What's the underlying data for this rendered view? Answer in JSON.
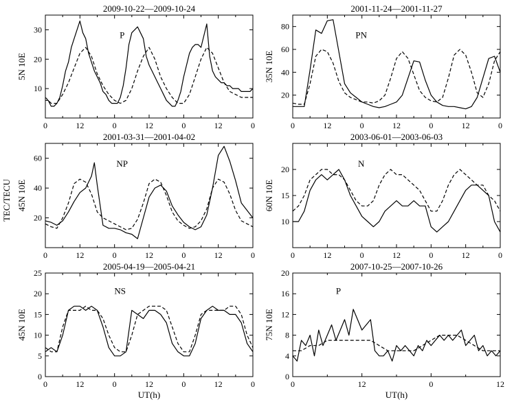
{
  "figure": {
    "ylabel": "TEC/TECU",
    "xlabel": "UT(h)"
  },
  "chart_data": [
    {
      "type": "line",
      "title": "2009-10-22—2009-10-24",
      "annotation": "P",
      "ylabel": "5N 10E",
      "xlabel": "",
      "x_ticks": [
        "0",
        "12",
        "0",
        "12",
        "0",
        "12",
        "0"
      ],
      "y_ticks": [
        10,
        20,
        30
      ],
      "ylim": [
        0,
        35
      ],
      "xlim": [
        0,
        72
      ],
      "series": [
        {
          "name": "",
          "style": "solid",
          "x": [
            0,
            1,
            2,
            3,
            4,
            5,
            6,
            7,
            8,
            9,
            10,
            11,
            12,
            13,
            14,
            15,
            16,
            17,
            18,
            19,
            20,
            21,
            22,
            23,
            24,
            25,
            26,
            27,
            28,
            29,
            30,
            31,
            32,
            33,
            34,
            35,
            36,
            37,
            38,
            39,
            40,
            41,
            42,
            43,
            44,
            45,
            46,
            47,
            48,
            49,
            50,
            51,
            52,
            53,
            54,
            55,
            56,
            57,
            58,
            59,
            60,
            61,
            62,
            63,
            64,
            65,
            66,
            67,
            68,
            69,
            70,
            71,
            72
          ],
          "values": [
            6,
            6,
            4,
            4,
            5,
            7,
            11,
            16,
            19,
            24,
            27,
            30,
            33,
            29,
            27,
            22,
            19,
            16,
            14,
            12,
            9,
            8,
            6,
            5,
            5,
            5,
            7,
            11,
            17,
            25,
            29,
            30,
            31,
            29,
            27,
            21,
            18,
            16,
            14,
            12,
            10,
            8,
            6,
            5,
            4,
            4,
            6,
            9,
            14,
            18,
            22,
            24,
            25,
            25,
            24,
            28,
            32,
            21,
            16,
            14,
            13,
            12,
            12,
            11,
            11,
            10,
            10,
            10,
            9,
            9,
            9,
            9,
            10
          ]
        },
        {
          "name": "",
          "style": "dashed",
          "x": [
            0,
            2,
            4,
            6,
            8,
            10,
            12,
            14,
            16,
            18,
            20,
            22,
            24,
            26,
            28,
            30,
            32,
            34,
            36,
            38,
            40,
            42,
            44,
            46,
            48,
            50,
            52,
            54,
            56,
            58,
            60,
            62,
            64,
            66,
            68,
            70,
            72
          ],
          "values": [
            7,
            5,
            5,
            8,
            12,
            17,
            22,
            24,
            21,
            15,
            11,
            8,
            6,
            5,
            6,
            10,
            16,
            21,
            24,
            20,
            14,
            10,
            7,
            5,
            5,
            8,
            14,
            20,
            24,
            22,
            17,
            12,
            9,
            8,
            7,
            7,
            7
          ]
        }
      ]
    },
    {
      "type": "line",
      "title": "2001-11-24—2001-11-27",
      "annotation": "PN",
      "ylabel": "35N 10E",
      "xlabel": "",
      "x_ticks": [
        "0",
        "12",
        "0",
        "12",
        "0",
        "12",
        "0"
      ],
      "y_ticks": [
        20,
        40,
        60,
        80
      ],
      "ylim": [
        0,
        90
      ],
      "xlim": [
        0,
        72
      ],
      "series": [
        {
          "name": "",
          "style": "solid",
          "x": [
            0,
            2,
            4,
            6,
            8,
            10,
            12,
            14,
            16,
            18,
            20,
            22,
            24,
            26,
            28,
            30,
            32,
            34,
            36,
            38,
            40,
            42,
            44,
            46,
            48,
            50,
            52,
            54,
            56,
            58,
            60,
            62,
            64,
            66,
            68,
            70,
            72
          ],
          "values": [
            10,
            10,
            10,
            42,
            77,
            74,
            85,
            86,
            58,
            30,
            22,
            18,
            14,
            12,
            10,
            9,
            10,
            12,
            14,
            20,
            35,
            50,
            49,
            33,
            20,
            14,
            11,
            10,
            10,
            9,
            8,
            10,
            18,
            35,
            52,
            54,
            40
          ]
        },
        {
          "name": "",
          "style": "dashed",
          "x": [
            0,
            2,
            4,
            6,
            8,
            10,
            12,
            14,
            16,
            18,
            20,
            22,
            24,
            26,
            28,
            30,
            32,
            34,
            36,
            38,
            40,
            42,
            44,
            46,
            48,
            50,
            52,
            54,
            56,
            58,
            60,
            62,
            64,
            66,
            68,
            70,
            72
          ],
          "values": [
            13,
            12,
            12,
            30,
            54,
            60,
            58,
            48,
            32,
            22,
            18,
            16,
            14,
            14,
            13,
            15,
            20,
            35,
            52,
            58,
            52,
            38,
            24,
            18,
            15,
            14,
            18,
            35,
            55,
            60,
            55,
            40,
            22,
            18,
            30,
            50,
            58
          ]
        }
      ]
    },
    {
      "type": "line",
      "title": "2001-03-31—2001-04-02",
      "annotation": "NP",
      "ylabel": "45N 10E",
      "xlabel": "",
      "x_ticks": [
        "0",
        "12",
        "0",
        "12",
        "0",
        "12",
        "0"
      ],
      "y_ticks": [
        20,
        40,
        60
      ],
      "ylim": [
        0,
        70
      ],
      "xlim": [
        0,
        72
      ],
      "series": [
        {
          "name": "",
          "style": "solid",
          "x": [
            0,
            2,
            4,
            6,
            8,
            10,
            12,
            14,
            16,
            17,
            18,
            20,
            22,
            24,
            26,
            28,
            30,
            32,
            34,
            36,
            38,
            40,
            42,
            44,
            46,
            48,
            50,
            52,
            54,
            56,
            58,
            60,
            62,
            64,
            66,
            68,
            70,
            72
          ],
          "values": [
            18,
            17,
            15,
            18,
            24,
            31,
            37,
            40,
            48,
            57,
            42,
            15,
            13,
            13,
            12,
            10,
            9,
            6,
            20,
            34,
            40,
            42,
            38,
            28,
            22,
            17,
            14,
            12,
            14,
            22,
            40,
            62,
            68,
            58,
            45,
            30,
            25,
            20
          ]
        },
        {
          "name": "",
          "style": "dashed",
          "x": [
            0,
            2,
            4,
            6,
            8,
            10,
            12,
            14,
            16,
            18,
            20,
            22,
            24,
            26,
            28,
            30,
            32,
            34,
            36,
            38,
            40,
            42,
            44,
            46,
            48,
            50,
            52,
            54,
            56,
            58,
            60,
            62,
            64,
            66,
            68,
            70,
            72
          ],
          "values": [
            16,
            14,
            13,
            20,
            30,
            43,
            46,
            44,
            36,
            24,
            20,
            18,
            16,
            14,
            12,
            13,
            19,
            30,
            43,
            46,
            44,
            35,
            24,
            18,
            15,
            13,
            14,
            18,
            26,
            40,
            46,
            44,
            36,
            25,
            18,
            16,
            14
          ]
        }
      ]
    },
    {
      "type": "line",
      "title": "2003-06-01—2003-06-03",
      "annotation": "N",
      "ylabel": "60N 10E",
      "xlabel": "",
      "x_ticks": [
        "0",
        "12",
        "0",
        "12",
        "0",
        "12",
        "0"
      ],
      "y_ticks": [
        10,
        15,
        20
      ],
      "ylim": [
        5,
        25
      ],
      "xlim": [
        0,
        72
      ],
      "series": [
        {
          "name": "",
          "style": "solid",
          "x": [
            0,
            2,
            4,
            6,
            8,
            10,
            12,
            14,
            16,
            18,
            20,
            22,
            24,
            26,
            28,
            30,
            32,
            34,
            36,
            38,
            40,
            42,
            44,
            46,
            48,
            50,
            52,
            54,
            56,
            58,
            60,
            62,
            64,
            66,
            68,
            70,
            72
          ],
          "values": [
            10,
            10,
            12,
            16,
            18,
            19,
            18,
            19,
            20,
            18,
            15,
            13,
            11,
            10,
            9,
            10,
            12,
            13,
            14,
            13,
            13,
            14,
            13,
            13,
            9,
            8,
            9,
            10,
            12,
            14,
            16,
            17,
            17,
            16,
            15,
            10,
            8
          ]
        },
        {
          "name": "",
          "style": "dashed",
          "x": [
            0,
            2,
            4,
            6,
            8,
            10,
            12,
            14,
            16,
            18,
            20,
            22,
            24,
            26,
            28,
            30,
            32,
            34,
            36,
            38,
            40,
            42,
            44,
            46,
            48,
            50,
            52,
            54,
            56,
            58,
            60,
            62,
            64,
            66,
            68,
            70,
            72
          ],
          "values": [
            12,
            13,
            15,
            18,
            19,
            20,
            20,
            19,
            19,
            18,
            16,
            14,
            13,
            13,
            14,
            17,
            19,
            20,
            19,
            19,
            18,
            17,
            16,
            14,
            12,
            12,
            14,
            17,
            19,
            20,
            19,
            18,
            17,
            17,
            15,
            14,
            12
          ]
        }
      ]
    },
    {
      "type": "line",
      "title": "2005-04-19—2005-04-21",
      "annotation": "NS",
      "ylabel": "45N 10E",
      "xlabel": "UT(h)",
      "x_ticks": [
        "0",
        "12",
        "0",
        "12",
        "0",
        "12",
        "0"
      ],
      "y_ticks": [
        0,
        5,
        10,
        15,
        20,
        25
      ],
      "ylim": [
        0,
        25
      ],
      "xlim": [
        0,
        72
      ],
      "series": [
        {
          "name": "",
          "style": "solid",
          "x": [
            0,
            2,
            4,
            6,
            8,
            10,
            12,
            14,
            16,
            18,
            20,
            22,
            24,
            26,
            28,
            30,
            32,
            34,
            36,
            38,
            40,
            42,
            44,
            46,
            48,
            50,
            52,
            54,
            56,
            58,
            60,
            62,
            64,
            66,
            68,
            70,
            72
          ],
          "values": [
            6,
            7,
            6,
            10,
            16,
            17,
            17,
            16,
            17,
            16,
            12,
            7,
            5,
            5,
            6,
            16,
            15,
            14,
            16,
            16,
            15,
            13,
            8,
            6,
            5,
            5,
            8,
            14,
            16,
            17,
            16,
            16,
            15,
            15,
            13,
            8,
            6
          ]
        },
        {
          "name": "",
          "style": "dashed",
          "x": [
            0,
            2,
            4,
            6,
            8,
            10,
            12,
            14,
            16,
            18,
            20,
            22,
            24,
            26,
            28,
            30,
            32,
            34,
            36,
            38,
            40,
            42,
            44,
            46,
            48,
            50,
            52,
            54,
            56,
            58,
            60,
            62,
            64,
            66,
            68,
            70,
            72
          ],
          "values": [
            7,
            6,
            6,
            12,
            16,
            16,
            16,
            17,
            16,
            16,
            14,
            10,
            7,
            6,
            6,
            10,
            15,
            16,
            17,
            17,
            17,
            16,
            12,
            8,
            6,
            6,
            10,
            15,
            16,
            16,
            16,
            16,
            17,
            17,
            15,
            10,
            7
          ]
        }
      ]
    },
    {
      "type": "line",
      "title": "2007-10-25—2007-10-26",
      "annotation": "P",
      "ylabel": "75N 10E",
      "xlabel": "UT(h)",
      "x_ticks": [
        "0",
        "12",
        "0",
        "12"
      ],
      "y_ticks": [
        0,
        4,
        8,
        12,
        16,
        20
      ],
      "ylim": [
        0,
        20
      ],
      "xlim": [
        0,
        48
      ],
      "series": [
        {
          "name": "",
          "style": "solid",
          "x": [
            0,
            1,
            2,
            3,
            4,
            5,
            6,
            7,
            8,
            9,
            10,
            11,
            12,
            13,
            14,
            15,
            16,
            17,
            18,
            19,
            20,
            21,
            22,
            23,
            24,
            25,
            26,
            27,
            28,
            29,
            30,
            31,
            32,
            33,
            34,
            35,
            36,
            37,
            38,
            39,
            40,
            41,
            42,
            43,
            44,
            45,
            46,
            47,
            48
          ],
          "values": [
            4,
            3,
            7,
            6,
            8,
            4,
            9,
            6,
            8,
            10,
            7,
            9,
            11,
            8,
            13,
            11,
            9,
            10,
            11,
            5,
            4,
            4,
            5,
            3,
            6,
            5,
            6,
            5,
            4,
            6,
            5,
            7,
            6,
            7,
            8,
            7,
            8,
            7,
            8,
            9,
            6,
            7,
            8,
            5,
            6,
            4,
            5,
            4,
            5
          ]
        },
        {
          "name": "",
          "style": "dashed",
          "x": [
            0,
            2,
            4,
            6,
            8,
            10,
            12,
            14,
            16,
            18,
            20,
            22,
            24,
            26,
            28,
            30,
            32,
            34,
            36,
            38,
            40,
            42,
            44,
            46,
            48
          ],
          "values": [
            5,
            5,
            6,
            6,
            7,
            7,
            7,
            7,
            7,
            7,
            6,
            5,
            5,
            5,
            5,
            6,
            7,
            8,
            8,
            8,
            7,
            6,
            5,
            5,
            5
          ]
        }
      ]
    }
  ]
}
